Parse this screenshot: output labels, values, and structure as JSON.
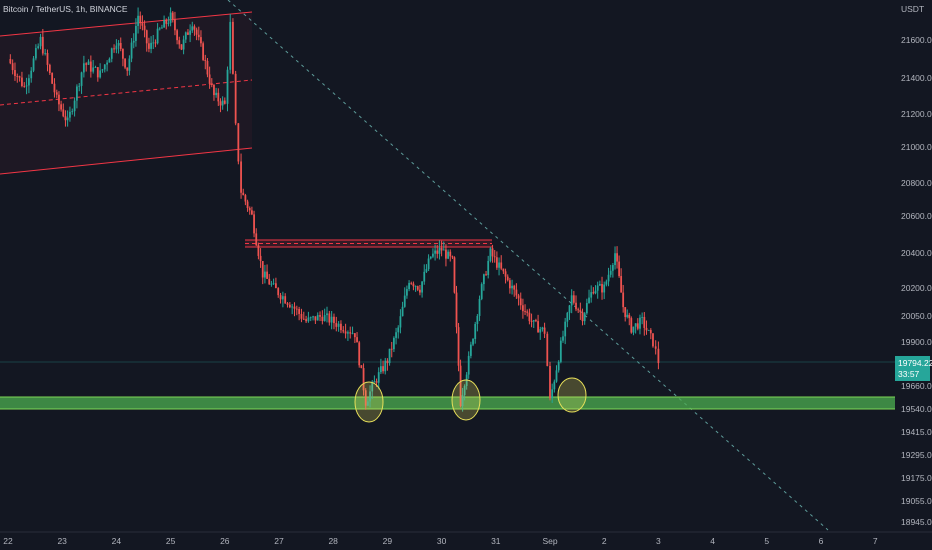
{
  "header": {
    "symbol_title": "Bitcoin / TetherUS, 1h, BINANCE",
    "currency": "USDT"
  },
  "price_badge": {
    "price": "19794.22",
    "countdown": "33:57",
    "value": 19794.22
  },
  "colors": {
    "background": "#131722",
    "up_candle": "#26a69a",
    "down_candle": "#ef5350",
    "channel": "#f23645",
    "support_zone": "#4caf50",
    "badge": "#26a69a",
    "highlight_circle": "#e8e05a",
    "trendline": "#5d9c9a"
  },
  "chart_data": {
    "type": "candlestick",
    "title": "Bitcoin / TetherUS, 1h, BINANCE",
    "x_tick_labels": [
      "22",
      "23",
      "24",
      "25",
      "26",
      "27",
      "28",
      "29",
      "30",
      "31",
      "Sep",
      "2",
      "3",
      "4",
      "5",
      "6",
      "7"
    ],
    "y_tick_labels": [
      "21600.00",
      "21400.00",
      "21200.00",
      "21000.00",
      "20800.00",
      "20600.00",
      "20400.00",
      "20200.00",
      "20050.00",
      "19900.00",
      "19660.00",
      "19540.00",
      "19415.00",
      "19295.00",
      "19175.00",
      "19055.00",
      "18945.00"
    ],
    "last_price": 19794.22,
    "resistance_zone": [
      20420,
      20480
    ],
    "support_zone": [
      19530,
      19580
    ],
    "highlighted_lows": [
      "28",
      "30",
      "Sep"
    ],
    "grid": false,
    "series": [
      {
        "ohlc_path": [
          [
            22.0,
            21500
          ],
          [
            22.3,
            21350
          ],
          [
            22.6,
            21600
          ],
          [
            22.9,
            21280
          ],
          [
            23.1,
            21150
          ],
          [
            23.4,
            21480
          ],
          [
            23.7,
            21420
          ],
          [
            24.0,
            21600
          ],
          [
            24.2,
            21450
          ],
          [
            24.4,
            21730
          ],
          [
            24.6,
            21550
          ],
          [
            24.8,
            21650
          ],
          [
            25.0,
            21720
          ],
          [
            25.2,
            21560
          ],
          [
            25.4,
            21700
          ],
          [
            25.6,
            21520
          ],
          [
            25.8,
            21300
          ],
          [
            26.0,
            21250
          ],
          [
            26.1,
            21680
          ],
          [
            26.2,
            21120
          ],
          [
            26.3,
            20750
          ],
          [
            26.5,
            20600
          ],
          [
            26.7,
            20280
          ],
          [
            26.9,
            20200
          ],
          [
            27.2,
            20120
          ],
          [
            27.5,
            20020
          ],
          [
            27.8,
            20050
          ],
          [
            28.1,
            20000
          ],
          [
            28.4,
            19950
          ],
          [
            28.6,
            19580
          ],
          [
            28.8,
            19700
          ],
          [
            29.0,
            19800
          ],
          [
            29.2,
            19980
          ],
          [
            29.4,
            20250
          ],
          [
            29.6,
            20200
          ],
          [
            29.8,
            20380
          ],
          [
            30.0,
            20420
          ],
          [
            30.2,
            20350
          ],
          [
            30.35,
            19580
          ],
          [
            30.5,
            19800
          ],
          [
            30.7,
            20150
          ],
          [
            30.9,
            20400
          ],
          [
            31.1,
            20300
          ],
          [
            31.3,
            20200
          ],
          [
            31.5,
            20100
          ],
          [
            31.7,
            20000
          ],
          [
            31.9,
            19960
          ],
          [
            32.0,
            19580
          ],
          [
            32.2,
            19880
          ],
          [
            32.4,
            20150
          ],
          [
            32.6,
            20050
          ],
          [
            32.8,
            20200
          ],
          [
            33.0,
            20200
          ],
          [
            33.2,
            20400
          ],
          [
            33.35,
            20100
          ],
          [
            33.5,
            19980
          ],
          [
            33.7,
            20020
          ],
          [
            33.9,
            19900
          ],
          [
            34.0,
            19794
          ]
        ]
      }
    ]
  }
}
